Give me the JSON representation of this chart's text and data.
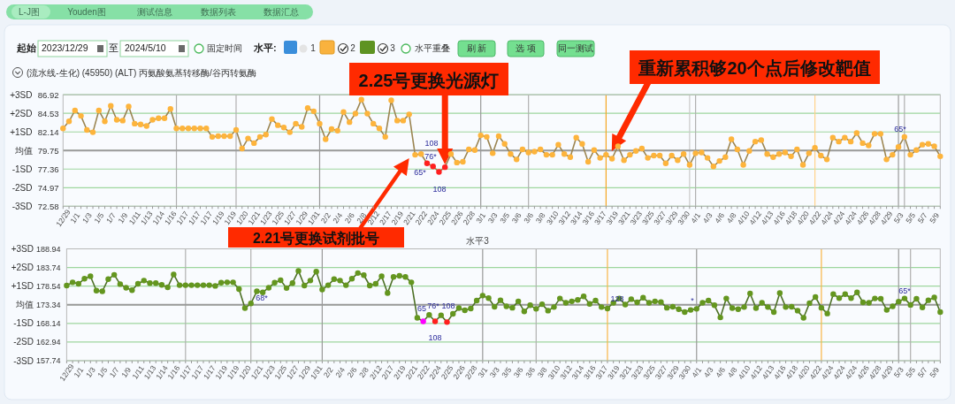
{
  "chart_data": [
    {
      "type": "other",
      "annotations": [
        "L-J图",
        "Youden图",
        "测试信息",
        "数据列表",
        "数据汇总",
        "起始",
        "2023/12/29",
        "至",
        "2024/5/10",
        "固定时间",
        "水平:",
        "1",
        "2",
        "3",
        "水平重叠",
        "刷 新",
        "选 项",
        "同一测试",
        "(流水线-生化) (45950) (ALT) 丙氨酸氨基转移酶/谷丙转氨酶"
      ]
    },
    {
      "type": "line",
      "marker": "circle",
      "grid": "y",
      "categories": [
        "12/29",
        null,
        "1/1",
        null,
        "1/3",
        null,
        "1/5",
        null,
        "1/7",
        null,
        "1/9",
        null,
        "1/11",
        null,
        "1/13",
        null,
        "1/14",
        null,
        "1/16",
        null,
        "1/17",
        null,
        "1/17",
        null,
        "1/17",
        null,
        "1/19",
        null,
        "1/19",
        null,
        "1/20",
        null,
        "1/21",
        null,
        "1/23",
        null,
        "1/25",
        null,
        "1/27",
        null,
        "1/29",
        null,
        "1/31",
        null,
        "2/2",
        null,
        "2/4",
        null,
        "2/6",
        null,
        "2/8",
        null,
        "2/12",
        null,
        "2/17",
        null,
        "2/19",
        null,
        "2/21",
        null,
        "2/22",
        null,
        "2/24",
        null,
        "2/25",
        null,
        "2/26",
        null,
        "2/28",
        null,
        "3/1",
        null,
        "3/3",
        null,
        "3/5",
        null,
        "3/6",
        null,
        "3/6",
        null,
        "3/8",
        null,
        "3/10",
        null,
        "3/12",
        null,
        "3/14",
        null,
        "3/16",
        null,
        "3/17",
        null,
        "3/19",
        null,
        "3/21",
        null,
        "3/23",
        null,
        "3/25",
        null,
        "3/27",
        null,
        "3/29",
        null,
        "3/30",
        null,
        "4/1",
        null,
        "4/3",
        null,
        "4/6",
        null,
        "4/8",
        null,
        "4/10",
        null,
        "4/12",
        null,
        "4/13",
        null,
        "4/16",
        null,
        "4/18",
        null,
        "4/20",
        null,
        "4/22",
        null,
        "4/24",
        null,
        "4/24",
        null,
        "4/24",
        null,
        "4/26",
        null,
        "4/28",
        null,
        "4/29",
        null,
        "5/3",
        null,
        "5/5",
        null,
        "5/7",
        null,
        "5/9",
        null
      ],
      "ylim": [
        72.58,
        86.92
      ],
      "yticks": [
        72.58,
        74.97,
        77.36,
        79.75,
        82.14,
        84.53,
        86.92
      ],
      "y2lim": [
        -3,
        3
      ],
      "y2ticks": [
        {
          "value": 3,
          "label": "+3SD"
        },
        {
          "value": 2,
          "label": "+2SD"
        },
        {
          "value": 1,
          "label": "+1SD"
        },
        {
          "value": 0,
          "label": "均值"
        },
        {
          "value": -1,
          "label": "-1SD"
        },
        {
          "value": -2,
          "label": "-2SD"
        },
        {
          "value": -3,
          "label": "-3SD"
        }
      ],
      "ref_lines": [
        {
          "axis": "y",
          "value": 79.75,
          "color": "#9a9a9a"
        }
      ],
      "series": [
        {
          "color": "#9b8552",
          "colors": [
            "#fdb43c",
            "#fdb43c",
            "#fdb43c",
            "#fdb43c",
            "#fdb43c",
            "#fdb43c",
            "#fdb43c",
            "#fdb43c",
            "#fdb43c",
            "#fdb43c",
            "#fdb43c",
            "#fdb43c",
            "#fdb43c",
            "#fdb43c",
            "#fdb43c",
            "#fdb43c",
            "#fdb43c",
            "#fdb43c",
            "#fdb43c",
            "#fdb43c",
            "#fdb43c",
            "#fdb43c",
            "#fdb43c",
            "#fdb43c",
            "#fdb43c",
            "#fdb43c",
            "#fdb43c",
            "#fdb43c",
            "#fdb43c",
            "#fdb43c",
            "#fdb43c",
            "#fdb43c",
            "#fdb43c",
            "#fdb43c",
            "#fdb43c",
            "#fdb43c",
            "#fdb43c",
            "#fdb43c",
            "#fdb43c",
            "#fdb43c",
            "#fdb43c",
            "#fdb43c",
            "#fdb43c",
            "#fdb43c",
            "#fdb43c",
            "#fdb43c",
            "#fdb43c",
            "#fdb43c",
            "#fdb43c",
            "#fdb43c",
            "#fdb43c",
            "#fdb43c",
            "#fdb43c",
            "#fdb43c",
            "#fdb43c",
            "#fdb43c",
            "#fdb43c",
            "#fdb43c",
            "#fdb43c",
            "#fdb43c",
            "#fdb43c",
            "#ff1f1f",
            "#ff1f1f",
            "#ff1f1f",
            "#ff1f1f",
            "#fdb43c",
            "#fdb43c",
            "#fdb43c",
            "#fdb43c",
            "#fdb43c",
            "#fdb43c",
            "#fdb43c",
            "#fdb43c",
            "#fdb43c",
            "#fdb43c",
            "#fdb43c",
            "#fdb43c",
            "#fdb43c",
            "#fdb43c",
            "#fdb43c",
            "#fdb43c",
            "#fdb43c",
            "#fdb43c",
            "#fdb43c",
            "#fdb43c",
            "#fdb43c",
            "#fdb43c",
            "#fdb43c",
            "#fdb43c",
            "#fdb43c",
            "#fdb43c",
            "#fdb43c",
            "#fdb43c",
            "#fdb43c",
            "#fdb43c",
            "#fdb43c",
            "#fdb43c",
            "#fdb43c",
            "#fdb43c",
            "#fdb43c",
            "#fdb43c",
            "#fdb43c",
            "#fdb43c",
            "#fdb43c",
            "#fdb43c",
            "#fdb43c",
            "#fdb43c",
            "#fdb43c",
            "#fdb43c",
            "#fdb43c",
            "#fdb43c",
            "#fdb43c",
            "#fdb43c",
            "#fdb43c",
            "#fdb43c",
            "#fdb43c",
            "#fdb43c",
            "#fdb43c",
            "#fdb43c",
            "#fdb43c",
            "#fdb43c",
            "#fdb43c",
            "#fdb43c",
            "#fdb43c",
            "#fdb43c",
            "#fdb43c",
            "#fdb43c",
            "#fdb43c",
            "#fdb43c",
            "#fdb43c",
            "#fdb43c",
            "#fdb43c",
            "#fdb43c",
            "#fdb43c",
            "#fdb43c",
            "#fdb43c",
            "#fdb43c",
            "#fdb43c",
            "#fdb43c",
            "#fdb43c",
            "#fdb43c",
            "#fdb43c",
            "#fdb43c",
            "#fdb43c",
            "#fdb43c",
            "#fdb43c",
            "#fdb43c",
            "#fdb43c"
          ],
          "values": [
            82.6,
            83.5,
            84.9,
            84.2,
            82.4,
            82.1,
            84.9,
            83.5,
            85.5,
            83.7,
            83.6,
            85.4,
            83.2,
            83.1,
            82.9,
            83.7,
            83.9,
            83.9,
            85.1,
            82.6,
            82.6,
            82.6,
            82.6,
            82.6,
            82.6,
            81.5,
            81.6,
            81.6,
            81.6,
            82.4,
            80.0,
            81.3,
            80.7,
            81.5,
            81.8,
            83.8,
            83.0,
            82.7,
            82.1,
            83.2,
            82.8,
            85.2,
            84.8,
            83.2,
            81.2,
            82.5,
            82.3,
            84.7,
            83.4,
            84.5,
            86.3,
            84.5,
            83.2,
            82.6,
            81.5,
            86.2,
            83.6,
            83.6,
            84.4,
            79.2,
            79.3,
            78.1,
            77.7,
            77.0,
            77.6,
            79.3,
            78.2,
            78.3,
            79.9,
            79.8,
            81.7,
            81.5,
            79.4,
            81.6,
            80.6,
            79.3,
            78.6,
            79.9,
            79.5,
            79.6,
            79.9,
            79.2,
            79.2,
            80.5,
            79.3,
            78.9,
            81.4,
            80.6,
            78.3,
            79.8,
            78.8,
            79.2,
            78.7,
            80.3,
            78.5,
            79.2,
            79.7,
            80.0,
            78.8,
            79.1,
            79.1,
            78.1,
            79.1,
            78.5,
            79.3,
            77.9,
            79.4,
            79.5,
            78.8,
            77.7,
            78.4,
            78.9,
            81.2,
            79.9,
            77.9,
            79.7,
            80.9,
            81.1,
            79.3,
            78.9,
            79.3,
            79.5,
            79.0,
            79.9,
            77.9,
            79.4,
            80.1,
            79.1,
            78.6,
            81.4,
            80.9,
            81.4,
            80.9,
            82.0,
            80.7,
            80.4,
            81.9,
            81.9,
            78.6,
            79.2,
            80.2,
            81.5,
            79.2,
            79.8,
            80.5,
            80.6,
            80.3,
            79.0
          ]
        }
      ],
      "annotations": [
        "2.25号更换光源灯",
        "重新累积够20个点后修改靶值",
        "2.21号更换试剂批号",
        "65*",
        "76*",
        "108",
        "108",
        "65*"
      ]
    },
    {
      "type": "line",
      "marker": "circle",
      "grid": "y",
      "title": "水平3",
      "categories": [
        "12/29",
        null,
        "1/1",
        null,
        "1/3",
        null,
        "1/5",
        null,
        "1/7",
        null,
        "1/9",
        null,
        "1/11",
        null,
        "1/13",
        null,
        "1/14",
        null,
        "1/16",
        null,
        "1/17",
        null,
        "1/17",
        null,
        "1/17",
        null,
        "1/19",
        null,
        "1/19",
        null,
        "1/20",
        null,
        "1/21",
        null,
        "1/23",
        null,
        "1/25",
        null,
        "1/27",
        null,
        "1/29",
        null,
        "1/31",
        null,
        "2/2",
        null,
        "2/4",
        null,
        "2/6",
        null,
        "2/8",
        null,
        "2/12",
        null,
        "2/17",
        null,
        "2/19",
        null,
        "2/21",
        null,
        "2/22",
        null,
        "2/24",
        null,
        "2/25",
        null,
        "2/26",
        null,
        "2/28",
        null,
        "3/1",
        null,
        "3/3",
        null,
        "3/5",
        null,
        "3/6",
        null,
        "3/6",
        null,
        "3/8",
        null,
        "3/10",
        null,
        "3/12",
        null,
        "3/14",
        null,
        "3/16",
        null,
        "3/17",
        null,
        "3/19",
        null,
        "3/21",
        null,
        "3/23",
        null,
        "3/25",
        null,
        "3/27",
        null,
        "3/29",
        null,
        "3/30",
        null,
        "4/1",
        null,
        "4/3",
        null,
        "4/6",
        null,
        "4/8",
        null,
        "4/10",
        null,
        "4/12",
        null,
        "4/13",
        null,
        "4/16",
        null,
        "4/18",
        null,
        "4/20",
        null,
        "4/22",
        null,
        "4/24",
        null,
        "4/24",
        null,
        "4/24",
        null,
        "4/26",
        null,
        "4/28",
        null,
        "4/29",
        null,
        "5/3",
        null,
        "5/5",
        null,
        "5/7",
        null,
        "5/9",
        null
      ],
      "ylim": [
        157.74,
        188.94
      ],
      "yticks": [
        157.74,
        162.94,
        168.14,
        173.34,
        178.54,
        183.74,
        188.94
      ],
      "y2lim": [
        -3,
        3
      ],
      "y2ticks": [
        {
          "value": 3,
          "label": "+3SD"
        },
        {
          "value": 2,
          "label": "+2SD"
        },
        {
          "value": 1,
          "label": "+1SD"
        },
        {
          "value": 0,
          "label": "均值"
        },
        {
          "value": -1,
          "label": "-1SD"
        },
        {
          "value": -2,
          "label": "-2SD"
        },
        {
          "value": -3,
          "label": "-3SD"
        }
      ],
      "ref_lines": [
        {
          "axis": "y",
          "value": 173.34,
          "color": "#9a9a9a"
        }
      ],
      "series": [
        {
          "color": "#4d7026",
          "colors": [
            "#64961f",
            "#64961f",
            "#64961f",
            "#64961f",
            "#64961f",
            "#64961f",
            "#64961f",
            "#64961f",
            "#64961f",
            "#64961f",
            "#64961f",
            "#64961f",
            "#64961f",
            "#64961f",
            "#64961f",
            "#64961f",
            "#64961f",
            "#64961f",
            "#64961f",
            "#64961f",
            "#64961f",
            "#64961f",
            "#64961f",
            "#64961f",
            "#64961f",
            "#64961f",
            "#64961f",
            "#64961f",
            "#64961f",
            "#64961f",
            "#64961f",
            "#64961f",
            "#64961f",
            "#64961f",
            "#64961f",
            "#64961f",
            "#64961f",
            "#64961f",
            "#64961f",
            "#64961f",
            "#64961f",
            "#64961f",
            "#64961f",
            "#64961f",
            "#64961f",
            "#64961f",
            "#64961f",
            "#64961f",
            "#64961f",
            "#64961f",
            "#64961f",
            "#64961f",
            "#64961f",
            "#64961f",
            "#64961f",
            "#64961f",
            "#64961f",
            "#64961f",
            "#64961f",
            "#64961f",
            "#ff00ff",
            "#64961f",
            "#ff1f1f",
            "#64961f",
            "#ff1f1f",
            "#64961f",
            "#64961f",
            "#64961f",
            "#64961f",
            "#64961f",
            "#64961f",
            "#64961f",
            "#64961f",
            "#64961f",
            "#64961f",
            "#64961f",
            "#64961f",
            "#64961f",
            "#64961f",
            "#64961f",
            "#64961f",
            "#64961f",
            "#64961f",
            "#64961f",
            "#64961f",
            "#64961f",
            "#64961f",
            "#64961f",
            "#64961f",
            "#64961f",
            "#64961f",
            "#64961f",
            "#64961f",
            "#64961f",
            "#64961f",
            "#64961f",
            "#64961f",
            "#64961f",
            "#64961f",
            "#64961f",
            "#64961f",
            "#64961f",
            "#64961f",
            "#64961f",
            "#64961f",
            "#64961f",
            "#64961f",
            "#64961f",
            "#64961f",
            "#64961f",
            "#64961f",
            "#64961f",
            "#64961f",
            "#64961f",
            "#64961f",
            "#64961f",
            "#64961f",
            "#64961f",
            "#64961f",
            "#64961f",
            "#64961f",
            "#64961f",
            "#64961f",
            "#64961f",
            "#64961f",
            "#64961f",
            "#64961f",
            "#64961f",
            "#64961f",
            "#64961f",
            "#64961f",
            "#64961f",
            "#64961f",
            "#64961f",
            "#64961f",
            "#64961f",
            "#64961f",
            "#64961f",
            "#64961f",
            "#64961f",
            "#64961f",
            "#64961f",
            "#64961f",
            "#64961f",
            "#64961f",
            "#64961f",
            "#64961f",
            "#64961f"
          ],
          "values": [
            178.7,
            179.6,
            179.2,
            180.6,
            181.3,
            177.3,
            177.1,
            180.5,
            181.7,
            179.1,
            178.1,
            177.4,
            179.2,
            180.1,
            179.4,
            179.4,
            178.9,
            178.2,
            181.8,
            178.8,
            178.8,
            178.8,
            178.8,
            178.8,
            178.8,
            178.6,
            179.5,
            179.6,
            179.6,
            177.7,
            172.4,
            173.7,
            177.1,
            176.8,
            178.1,
            179.5,
            180.2,
            178.0,
            179.4,
            182.8,
            178.7,
            180.1,
            182.6,
            177.6,
            178.8,
            180.5,
            180.1,
            178.8,
            180.6,
            182.2,
            181.6,
            178.7,
            179.2,
            181.3,
            176.6,
            181.1,
            181.4,
            181.1,
            179.6,
            169.7,
            168.7,
            170.5,
            168.7,
            170.4,
            168.5,
            170.8,
            172.4,
            171.8,
            172.3,
            174.5,
            175.9,
            175.2,
            172.8,
            174.6,
            172.9,
            172.5,
            174.3,
            171.5,
            173.2,
            172.2,
            173.5,
            171.7,
            172.7,
            175.1,
            173.9,
            174.3,
            174.7,
            175.7,
            173.6,
            174.5,
            172.7,
            172.3,
            173.9,
            175.1,
            173.4,
            174.9,
            174.0,
            175.3,
            173.9,
            174.3,
            174.1,
            172.5,
            172.8,
            172.1,
            171.3,
            171.9,
            172.2,
            173.9,
            174.5,
            173.2,
            169.8,
            175.1,
            172.4,
            172.1,
            172.7,
            176.5,
            172.4,
            173.9,
            172.7,
            171.3,
            176.6,
            172.7,
            172.8,
            171.7,
            169.7,
            173.8,
            175.5,
            172.5,
            170.9,
            176.3,
            175.2,
            176.3,
            175.2,
            176.8,
            174.0,
            173.9,
            175.1,
            175.0,
            171.9,
            172.9,
            174.2,
            175.1,
            173.3,
            175.0,
            172.6,
            174.6,
            175.4,
            171.3
          ]
        }
      ],
      "annotations": [
        "68*",
        "65",
        "76*",
        "108",
        "108",
        "128",
        "*",
        "65*"
      ]
    }
  ]
}
